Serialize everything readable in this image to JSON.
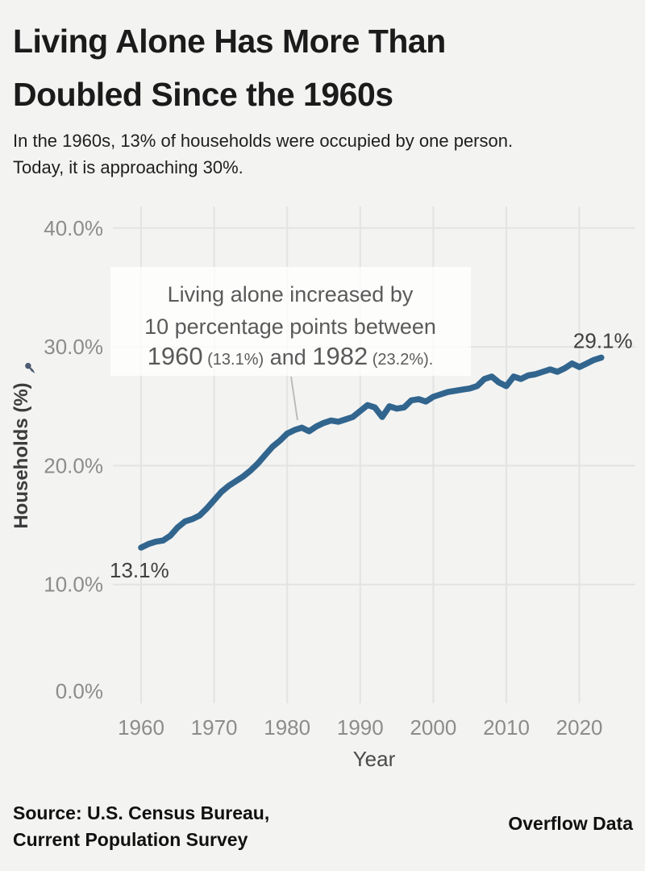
{
  "header": {
    "title_line1": "Living Alone Has More Than",
    "title_line2": "Doubled Since the 1960s",
    "subtitle_line1": "In the 1960s, 13% of households were occupied by one person.",
    "subtitle_line2": "Today, it is approaching 30%."
  },
  "footer": {
    "source_line1": "Source: U.S. Census Bureau,",
    "source_line2": "Current Population Survey",
    "brand": "Overflow Data"
  },
  "colors": {
    "background": "#f3f3f2",
    "line": "#31658e",
    "gridline": "#e3e3e1",
    "tick_label": "#8c8c8c",
    "axis_title": "#3c3c3c",
    "annotation_text": "#5a5a5a",
    "point_label": "#404040",
    "leader_line": "#bcbcbc",
    "annotation_box": "rgba(255,255,255,0.78)",
    "pin_icon": "#4b5b70"
  },
  "chart_data": {
    "type": "line",
    "title": "",
    "xlabel": "Year",
    "ylabel": "Households (%)",
    "ylim": [
      0,
      40
    ],
    "xlim": [
      1956,
      2028
    ],
    "grid": true,
    "legend": "none",
    "x": [
      1960,
      1961,
      1962,
      1963,
      1964,
      1965,
      1966,
      1967,
      1968,
      1969,
      1970,
      1971,
      1972,
      1973,
      1974,
      1975,
      1976,
      1977,
      1978,
      1979,
      1980,
      1981,
      1982,
      1983,
      1984,
      1985,
      1986,
      1987,
      1988,
      1989,
      1990,
      1991,
      1992,
      1993,
      1994,
      1995,
      1996,
      1997,
      1998,
      1999,
      2000,
      2001,
      2002,
      2003,
      2004,
      2005,
      2006,
      2007,
      2008,
      2009,
      2010,
      2011,
      2012,
      2013,
      2014,
      2015,
      2016,
      2017,
      2018,
      2019,
      2020,
      2021,
      2022,
      2023
    ],
    "values": [
      13.1,
      13.4,
      13.6,
      13.7,
      14.1,
      14.8,
      15.3,
      15.5,
      15.8,
      16.4,
      17.1,
      17.8,
      18.3,
      18.7,
      19.1,
      19.6,
      20.2,
      20.9,
      21.6,
      22.1,
      22.7,
      23.0,
      23.2,
      22.9,
      23.3,
      23.6,
      23.8,
      23.7,
      23.9,
      24.1,
      24.6,
      25.1,
      24.9,
      24.1,
      25.0,
      24.8,
      24.9,
      25.5,
      25.6,
      25.4,
      25.8,
      26.0,
      26.2,
      26.3,
      26.4,
      26.5,
      26.7,
      27.3,
      27.5,
      27.0,
      26.7,
      27.5,
      27.3,
      27.6,
      27.7,
      27.9,
      28.1,
      27.9,
      28.2,
      28.6,
      28.3,
      28.6,
      28.9,
      29.1
    ],
    "y_ticks": [
      40,
      30,
      20,
      10,
      0
    ],
    "y_tick_labels": [
      "40.0%",
      "30.0%",
      "20.0%",
      "10.0%",
      "0.0%"
    ],
    "x_ticks": [
      1960,
      1970,
      1980,
      1990,
      2000,
      2010,
      2020
    ],
    "x_tick_labels": [
      "1960",
      "1970",
      "1980",
      "1990",
      "2000",
      "2010",
      "2020"
    ],
    "start_label": "13.1%",
    "end_label": "29.1%",
    "annotation": {
      "line1": "Living alone increased by",
      "line2": "10 percentage points between",
      "line3_parts": [
        {
          "text": "1960",
          "size": 31
        },
        {
          "text": " (13.1%)",
          "size": 20
        },
        {
          "text": " and ",
          "size": 27
        },
        {
          "text": "1982",
          "size": 31
        },
        {
          "text": " (23.2%).",
          "size": 20
        }
      ]
    }
  }
}
